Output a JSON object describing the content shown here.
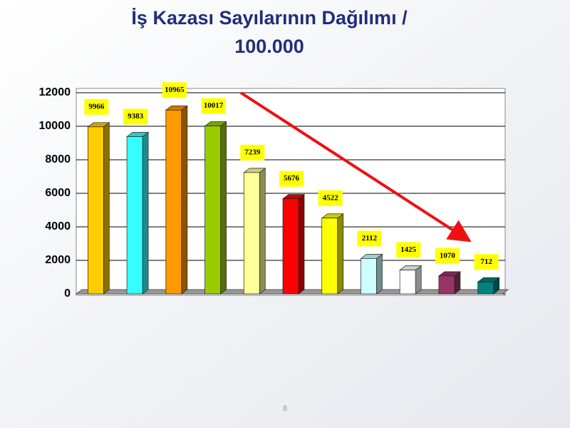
{
  "chart_data": {
    "type": "bar",
    "title": "İş Kazası Sayılarının Dağılımı / 100.000",
    "categories": [
      null,
      null,
      null,
      null,
      null,
      null,
      null,
      null,
      null,
      null,
      null
    ],
    "values": [
      9966,
      9383,
      10965,
      10017,
      7239,
      5676,
      4522,
      2112,
      1425,
      1070,
      712
    ],
    "colors": [
      "#ffcc00",
      "#33ffff",
      "#ff9900",
      "#99cc00",
      "#ffff99",
      "#ff0000",
      "#ffff00",
      "#ccffff",
      "#ffffff",
      "#993366",
      "#008080"
    ],
    "ylim": [
      0,
      12000
    ],
    "yticks": [
      0,
      2000,
      4000,
      6000,
      8000,
      10000,
      12000
    ],
    "grid": true
  },
  "page_number": "8"
}
